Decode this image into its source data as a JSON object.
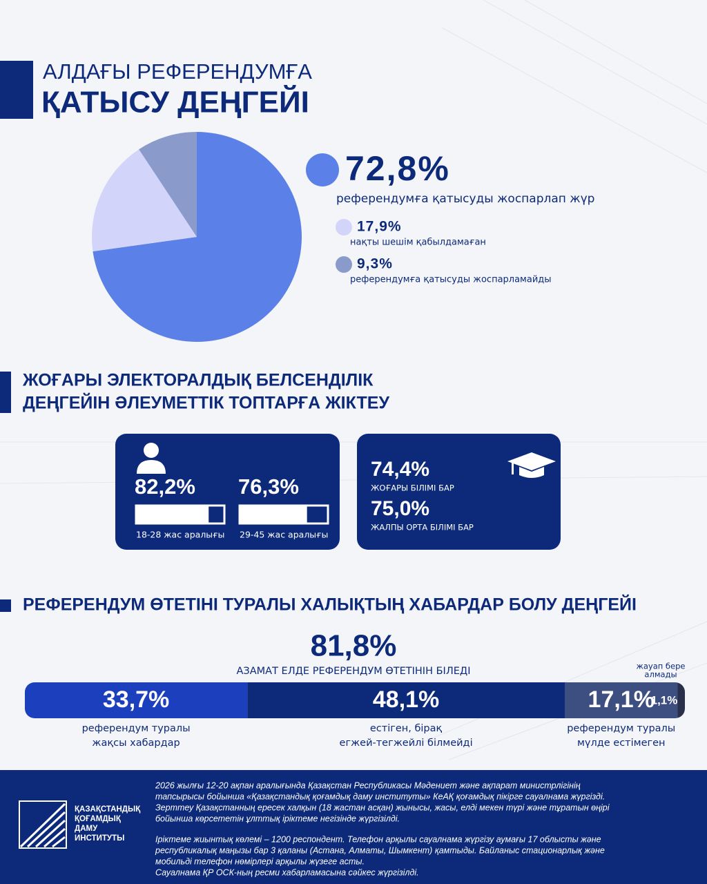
{
  "header": {
    "title_line1": "АЛДАҒЫ РЕФЕРЕНДУМҒА",
    "title_line2": "ҚАТЫСУ ДЕҢГЕЙІ"
  },
  "chart_data": [
    {
      "type": "pie",
      "categories": [
        "референдумға қатысуды жоспарлап жүр",
        "нақты шешім қабылдамаған",
        "референдумға қатысуды жоспарламайды"
      ],
      "values": [
        72.8,
        17.9,
        9.3
      ],
      "value_labels": [
        "72,8%",
        "17,9%",
        "9,3%"
      ],
      "colors": [
        "#5b80e8",
        "#d3d4fa",
        "#8a9bcb"
      ]
    },
    {
      "type": "progress",
      "title": [
        "ЖОҒАРЫ ЭЛЕКТОРАЛДЫҚ БЕЛСЕНДІЛІК",
        "ДЕҢГЕЙІН ӘЛЕУМЕТТІК ТОПТАРҒА ЖІКТЕУ"
      ],
      "categories": [
        "18-28 жас аралығы",
        "29-45 жас аралығы"
      ],
      "values": [
        82.2,
        76.3
      ],
      "value_labels": [
        "82,2%",
        "76,3%"
      ],
      "xlim": [
        0,
        100
      ]
    },
    {
      "type": "stat",
      "categories": [
        "ЖОҒАРЫ БІЛІМІ БАР",
        "ЖАЛПЫ ОРТА БІЛІМІ БАР"
      ],
      "values": [
        74.4,
        75.0
      ],
      "value_labels": [
        "74,4%",
        "75,0%"
      ]
    },
    {
      "type": "stacked",
      "title": "РЕФЕРЕНДУМ ӨТЕТІНІ ТУРАЛЫ ХАЛЫҚТЫҢ ХАБАРДАР БОЛУ ДЕҢГЕЙІ",
      "total_value": 81.8,
      "total_label": "81,8%",
      "total_caption": "АЗАМАТ ЕЛДЕ РЕФЕРЕНДУМ ӨТЕТІНІН БІЛЕДІ",
      "categories": [
        [
          "референдум туралы",
          "жақсы хабардар"
        ],
        [
          "естіген, бірақ",
          "егжей-тегжейлі білмейді"
        ],
        [
          "референдум туралы",
          "мүлде естімеген"
        ],
        [
          "жауап бере",
          "алмады"
        ]
      ],
      "values": [
        33.7,
        48.1,
        17.1,
        1.1
      ],
      "value_labels": [
        "33,7%",
        "48,1%",
        "17,1%",
        "1,1%"
      ],
      "colors": [
        "#1b3fbd",
        "#0d2a7a",
        "#3d4f80",
        "#2a2f4a"
      ],
      "xlim": [
        0,
        100
      ]
    }
  ],
  "footer": {
    "org_name": [
      "ҚАЗАҚСТАНДЫҚ",
      "ҚОҒАМДЫҚ",
      "ДАМУ",
      "ИНСТИТУТЫ"
    ],
    "paragraphs": [
      [
        "2026 жылғы 12-20 ақпан аралығында Қазақстан Республикасы Мәдениет және ақпарат министрлігінің",
        "тапсырысы бойынша «Қазақстандық қоғамдық даму институты» КеАҚ қоғамдық пікірге сауалнама жүргізді.",
        "Зерттеу Қазақстанның ересек халқын (18 жастан асқан) жынысы, жасы, елді мекен түрі және тұратын өңірі",
        "бойынша көрсететін ұлттық іріктеме негізінде жүргізілді."
      ],
      [
        "Іріктеме жиынтық көлемі – 1200 респондент. Телефон арқылы сауалнама жүргізу аумағы 17 облысты және",
        "республикалық маңызы бар 3 қаланы (Астана, Алматы, Шымкент) қамтыды. Байланыс стационарлық және",
        "мобильді телефон нөмірлері арқылы жүзеге асты.",
        "Сауалнама ҚР ОСК-ның ресми хабарламасына сәйкес жүргізілді."
      ]
    ]
  }
}
